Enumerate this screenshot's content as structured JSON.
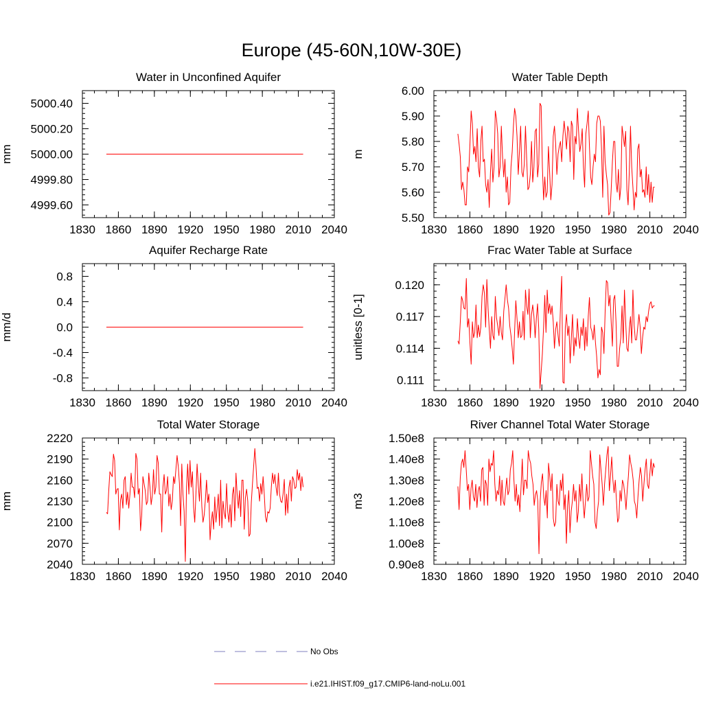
{
  "title": "Europe (45-60N,10W-30E)",
  "colors": {
    "model": "#ff0000",
    "obs": "#7f7fbf",
    "axis": "#000000"
  },
  "legend": {
    "obs_label": "No Obs",
    "model_label": "i.e21.IHIST.f09_g17.CMIP6-land-noLu.001"
  },
  "chart_data": [
    {
      "type": "line",
      "title": "Water in Unconfined Aquifer",
      "ylabel": "mm",
      "xlim": [
        1830,
        2040
      ],
      "xticks": [
        1830,
        1860,
        1890,
        1920,
        1950,
        1980,
        2010,
        2040
      ],
      "ylim": [
        4999.5,
        5000.5
      ],
      "yticks": [
        4999.6,
        4999.8,
        5000.0,
        5000.2,
        5000.4
      ],
      "ytick_labels": [
        "4999.60",
        "4999.80",
        "5000.00",
        "5000.20",
        "5000.40"
      ],
      "series": [
        {
          "x_start": 1850,
          "x_end": 2014,
          "values": [
            5000.0,
            5000.0
          ]
        }
      ]
    },
    {
      "type": "line",
      "title": "Water Table Depth",
      "ylabel": "m",
      "xlim": [
        1830,
        2040
      ],
      "xticks": [
        1830,
        1860,
        1890,
        1920,
        1950,
        1980,
        2010,
        2040
      ],
      "ylim": [
        5.5,
        6.0
      ],
      "yticks": [
        5.5,
        5.6,
        5.7,
        5.8,
        5.9,
        6.0
      ],
      "ytick_labels": [
        "5.50",
        "5.60",
        "5.70",
        "5.80",
        "5.90",
        "6.00"
      ],
      "series": [
        {
          "x_start": 1850,
          "x_end": 2014,
          "values": [
            5.83,
            5.79,
            5.74,
            5.61,
            5.64,
            5.61,
            5.55,
            5.55,
            5.7,
            5.68,
            5.79,
            5.92,
            5.87,
            5.75,
            5.78,
            5.72,
            5.85,
            5.7,
            5.66,
            5.8,
            5.86,
            5.72,
            5.73,
            5.63,
            5.6,
            5.65,
            5.54,
            5.68,
            5.77,
            5.64,
            5.7,
            5.92,
            5.89,
            5.83,
            5.66,
            5.7,
            5.86,
            5.74,
            5.66,
            5.73,
            5.6,
            5.66,
            5.55,
            5.56,
            5.7,
            5.76,
            5.86,
            5.93,
            5.9,
            5.82,
            5.67,
            5.76,
            5.86,
            5.68,
            5.66,
            5.71,
            5.86,
            5.73,
            5.61,
            5.62,
            5.67,
            5.8,
            5.64,
            5.7,
            5.84,
            5.85,
            5.66,
            5.71,
            5.95,
            5.94,
            5.7,
            5.57,
            5.66,
            5.58,
            5.6,
            5.78,
            5.68,
            5.57,
            5.63,
            5.82,
            5.86,
            5.79,
            5.67,
            5.75,
            5.78,
            5.8,
            5.72,
            5.82,
            5.88,
            5.83,
            5.77,
            5.86,
            5.84,
            5.72,
            5.88,
            5.86,
            5.65,
            5.82,
            5.79,
            5.93,
            5.84,
            5.76,
            5.79,
            5.85,
            5.7,
            5.62,
            5.83,
            5.87,
            5.92,
            5.78,
            5.66,
            5.63,
            5.7,
            5.75,
            5.72,
            5.87,
            5.9,
            5.9,
            5.88,
            5.77,
            5.58,
            5.86,
            5.72,
            5.67,
            5.63,
            5.51,
            5.52,
            5.61,
            5.72,
            5.8,
            5.8,
            5.64,
            5.6,
            5.69,
            5.57,
            5.62,
            5.86,
            5.82,
            5.78,
            5.84,
            5.61,
            5.55,
            5.68,
            5.86,
            5.7,
            5.62,
            5.53,
            5.6,
            5.58,
            5.77,
            5.79,
            5.66,
            5.69,
            5.6,
            5.61,
            5.58,
            5.7,
            5.59,
            5.67,
            5.56,
            5.64,
            5.56,
            5.62,
            5.62
          ]
        }
      ]
    },
    {
      "type": "line",
      "title": "Aquifer Recharge Rate",
      "ylabel": "mm/d",
      "xlim": [
        1830,
        2040
      ],
      "xticks": [
        1830,
        1860,
        1890,
        1920,
        1950,
        1980,
        2010,
        2040
      ],
      "ylim": [
        -1.0,
        1.0
      ],
      "yticks": [
        -0.8,
        -0.4,
        0.0,
        0.4,
        0.8
      ],
      "ytick_labels": [
        "-0.8",
        "-0.4",
        "0.0",
        "0.4",
        "0.8"
      ],
      "series": [
        {
          "x_start": 1850,
          "x_end": 2014,
          "values": [
            0.0,
            0.0
          ]
        }
      ]
    },
    {
      "type": "line",
      "title": "Frac Water Table at Surface",
      "ylabel": "unitless [0-1]",
      "xlim": [
        1830,
        2040
      ],
      "xticks": [
        1830,
        1860,
        1890,
        1920,
        1950,
        1980,
        2010,
        2040
      ],
      "ylim": [
        0.11,
        0.122
      ],
      "yticks": [
        0.111,
        0.114,
        0.117,
        0.12
      ],
      "ytick_labels": [
        "0.111",
        "0.114",
        "0.117",
        "0.120"
      ],
      "series": [
        {
          "x_start": 1850,
          "x_end": 2014,
          "values": [
            0.1147,
            0.1144,
            0.1165,
            0.1189,
            0.1185,
            0.1178,
            0.1177,
            0.1206,
            0.116,
            0.1168,
            0.1145,
            0.1125,
            0.1165,
            0.115,
            0.1155,
            0.1181,
            0.115,
            0.1162,
            0.1151,
            0.116,
            0.1189,
            0.12,
            0.1192,
            0.116,
            0.1205,
            0.1178,
            0.1158,
            0.114,
            0.117,
            0.1152,
            0.1148,
            0.1189,
            0.1169,
            0.1161,
            0.1152,
            0.117,
            0.1155,
            0.1148,
            0.1175,
            0.1187,
            0.12,
            0.1186,
            0.1178,
            0.1161,
            0.1152,
            0.114,
            0.1125,
            0.1156,
            0.1185,
            0.1168,
            0.115,
            0.1165,
            0.115,
            0.1152,
            0.1175,
            0.1148,
            0.1195,
            0.118,
            0.1172,
            0.1196,
            0.115,
            0.1172,
            0.1181,
            0.117,
            0.115,
            0.1168,
            0.1182,
            0.1158,
            0.1102,
            0.1118,
            0.1135,
            0.116,
            0.119,
            0.1155,
            0.1195,
            0.1173,
            0.1182,
            0.1172,
            0.118,
            0.1165,
            0.114,
            0.1158,
            0.1165,
            0.1152,
            0.1142,
            0.118,
            0.1208,
            0.1108,
            0.1107,
            0.116,
            0.1172,
            0.1152,
            0.1161,
            0.1126,
            0.115,
            0.1172,
            0.1133,
            0.115,
            0.1142,
            0.1168,
            0.115,
            0.114,
            0.116,
            0.1152,
            0.1168,
            0.1138,
            0.116,
            0.1142,
            0.117,
            0.1188,
            0.116,
            0.1156,
            0.1148,
            0.1162,
            0.1145,
            0.1132,
            0.1112,
            0.112,
            0.1115,
            0.116,
            0.1155,
            0.1135,
            0.1175,
            0.1204,
            0.1202,
            0.118,
            0.119,
            0.1165,
            0.1142,
            0.1186,
            0.119,
            0.1165,
            0.1123,
            0.1123,
            0.114,
            0.115,
            0.118,
            0.1145,
            0.1195,
            0.1165,
            0.114,
            0.1137,
            0.1158,
            0.117,
            0.1145,
            0.1195,
            0.1162,
            0.1148,
            0.1148,
            0.116,
            0.1172,
            0.116,
            0.1135,
            0.115,
            0.116,
            0.1158,
            0.117,
            0.1165,
            0.1175,
            0.1182,
            0.1184,
            0.1178,
            0.118,
            0.118
          ]
        }
      ]
    },
    {
      "type": "line",
      "title": "Total Water Storage",
      "ylabel": "mm",
      "xlim": [
        1830,
        2040
      ],
      "xticks": [
        1830,
        1860,
        1890,
        1920,
        1950,
        1980,
        2010,
        2040
      ],
      "ylim": [
        2040,
        2220
      ],
      "yticks": [
        2040,
        2070,
        2100,
        2130,
        2160,
        2190,
        2220
      ],
      "ytick_labels": [
        "2040",
        "2070",
        "2100",
        "2130",
        "2160",
        "2190",
        "2220"
      ],
      "series": [
        {
          "x_start": 1850,
          "x_end": 2014,
          "values": [
            2114,
            2112,
            2145,
            2172,
            2168,
            2165,
            2197,
            2188,
            2140,
            2147,
            2148,
            2089,
            2132,
            2140,
            2120,
            2160,
            2165,
            2125,
            2143,
            2120,
            2140,
            2170,
            2150,
            2150,
            2135,
            2198,
            2190,
            2140,
            2148,
            2088,
            2110,
            2165,
            2155,
            2145,
            2125,
            2130,
            2170,
            2150,
            2125,
            2138,
            2175,
            2140,
            2150,
            2195,
            2185,
            2140,
            2140,
            2086,
            2150,
            2168,
            2140,
            2145,
            2165,
            2123,
            2140,
            2118,
            2131,
            2165,
            2155,
            2175,
            2195,
            2180,
            2155,
            2095,
            2183,
            2140,
            2115,
            2044,
            2150,
            2183,
            2140,
            2188,
            2150,
            2172,
            2122,
            2100,
            2140,
            2183,
            2153,
            2130,
            2170,
            2123,
            2100,
            2110,
            2132,
            2160,
            2128,
            2140,
            2075,
            2100,
            2115,
            2090,
            2136,
            2100,
            2120,
            2140,
            2095,
            2160,
            2092,
            2130,
            2113,
            2105,
            2155,
            2115,
            2100,
            2125,
            2093,
            2140,
            2150,
            2102,
            2170,
            2140,
            2120,
            2145,
            2108,
            2160,
            2160,
            2090,
            2135,
            2147,
            2130,
            2080,
            2083,
            2128,
            2155,
            2180,
            2205,
            2180,
            2148,
            2150,
            2130,
            2155,
            2140,
            2165,
            2140,
            2108,
            2100,
            2115,
            2113,
            2120,
            2150,
            2170,
            2155,
            2168,
            2150,
            2138,
            2170,
            2140,
            2130,
            2128,
            2141,
            2161,
            2110,
            2140,
            2113,
            2150,
            2160,
            2130,
            2165,
            2160,
            2148,
            2150,
            2175,
            2160,
            2170,
            2145,
            2165,
            2150
          ]
        }
      ]
    },
    {
      "type": "line",
      "title": "River Channel Total Water Storage",
      "ylabel": "m3",
      "xlim": [
        1830,
        2040
      ],
      "xticks": [
        1830,
        1860,
        1890,
        1920,
        1950,
        1980,
        2010,
        2040
      ],
      "ylim": [
        90000000.0,
        150000000.0
      ],
      "yticks": [
        90000000.0,
        100000000.0,
        110000000.0,
        120000000.0,
        130000000.0,
        140000000.0,
        150000000.0
      ],
      "ytick_labels": [
        "0.90e8",
        "1.00e8",
        "1.10e8",
        "1.20e8",
        "1.30e8",
        "1.40e8",
        "1.50e8"
      ],
      "series": [
        {
          "x_start": 1850,
          "x_end": 2014,
          "values": [
            127000000.0,
            116000000.0,
            131000000.0,
            138000000.0,
            140000000.0,
            136000000.0,
            144000000.0,
            135000000.0,
            125000000.0,
            128000000.0,
            116000000.0,
            126000000.0,
            130000000.0,
            122000000.0,
            120000000.0,
            128000000.0,
            117000000.0,
            125000000.0,
            127000000.0,
            120000000.0,
            135000000.0,
            136000000.0,
            118000000.0,
            130000000.0,
            128000000.0,
            118000000.0,
            140000000.0,
            134000000.0,
            138000000.0,
            137000000.0,
            144000000.0,
            128000000.0,
            120000000.0,
            125000000.0,
            123000000.0,
            132000000.0,
            118000000.0,
            130000000.0,
            120000000.0,
            118000000.0,
            125000000.0,
            131000000.0,
            123000000.0,
            125000000.0,
            135000000.0,
            138000000.0,
            144000000.0,
            130000000.0,
            120000000.0,
            128000000.0,
            118000000.0,
            123000000.0,
            115000000.0,
            127000000.0,
            140000000.0,
            123000000.0,
            130000000.0,
            130000000.0,
            126000000.0,
            144000000.0,
            140000000.0,
            138000000.0,
            132000000.0,
            128000000.0,
            118000000.0,
            123000000.0,
            125000000.0,
            120000000.0,
            95000000.0,
            120000000.0,
            129000000.0,
            133000000.0,
            122000000.0,
            118000000.0,
            125000000.0,
            112000000.0,
            138000000.0,
            132000000.0,
            125000000.0,
            133000000.0,
            112000000.0,
            108000000.0,
            110000000.0,
            128000000.0,
            120000000.0,
            118000000.0,
            130000000.0,
            125000000.0,
            133000000.0,
            116000000.0,
            123000000.0,
            100000000.0,
            118000000.0,
            125000000.0,
            105000000.0,
            115000000.0,
            120000000.0,
            128000000.0,
            120000000.0,
            125000000.0,
            110000000.0,
            115000000.0,
            128000000.0,
            120000000.0,
            133000000.0,
            120000000.0,
            112000000.0,
            120000000.0,
            128000000.0,
            120000000.0,
            122000000.0,
            144000000.0,
            138000000.0,
            132000000.0,
            128000000.0,
            110000000.0,
            107000000.0,
            115000000.0,
            120000000.0,
            142000000.0,
            135000000.0,
            128000000.0,
            118000000.0,
            128000000.0,
            135000000.0,
            142000000.0,
            146000000.0,
            125000000.0,
            132000000.0,
            141000000.0,
            130000000.0,
            124000000.0,
            130000000.0,
            120000000.0,
            110000000.0,
            112000000.0,
            125000000.0,
            120000000.0,
            130000000.0,
            128000000.0,
            123000000.0,
            116000000.0,
            125000000.0,
            132000000.0,
            142000000.0,
            138000000.0,
            135000000.0,
            130000000.0,
            120000000.0,
            118000000.0,
            112000000.0,
            122000000.0,
            130000000.0,
            136000000.0,
            132000000.0,
            120000000.0,
            128000000.0,
            135000000.0,
            140000000.0,
            128000000.0,
            126000000.0,
            133000000.0,
            140000000.0,
            132000000.0,
            138000000.0,
            136000000.0
          ]
        }
      ]
    }
  ]
}
